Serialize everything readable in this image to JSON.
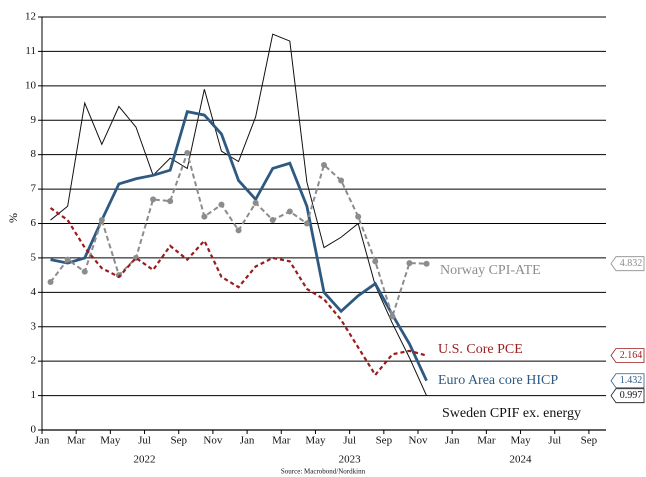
{
  "chart_data": {
    "type": "line",
    "y_label": "%",
    "source": "Source: Macrobond/Nordkinn",
    "x": [
      "2022-01",
      "2022-02",
      "2022-03",
      "2022-04",
      "2022-05",
      "2022-06",
      "2022-07",
      "2022-08",
      "2022-09",
      "2022-10",
      "2022-11",
      "2022-12",
      "2023-01",
      "2023-02",
      "2023-03",
      "2023-04",
      "2023-05",
      "2023-06",
      "2023-07",
      "2023-08",
      "2023-09",
      "2023-10",
      "2023-11"
    ],
    "xlim": [
      "2022-01",
      "2024-10"
    ],
    "xticks": [
      {
        "value": "2022-01",
        "label": "Jan"
      },
      {
        "value": "2022-03",
        "label": "Mar"
      },
      {
        "value": "2022-05",
        "label": "May"
      },
      {
        "value": "2022-07",
        "label": "Jul"
      },
      {
        "value": "2022-09",
        "label": "Sep"
      },
      {
        "value": "2022-11",
        "label": "Nov"
      },
      {
        "value": "2023-01",
        "label": "Jan"
      },
      {
        "value": "2023-03",
        "label": "Mar"
      },
      {
        "value": "2023-05",
        "label": "May"
      },
      {
        "value": "2023-07",
        "label": "Jul"
      },
      {
        "value": "2023-09",
        "label": "Sep"
      },
      {
        "value": "2023-11",
        "label": "Nov"
      },
      {
        "value": "2024-01",
        "label": "Jan"
      },
      {
        "value": "2024-03",
        "label": "Mar"
      },
      {
        "value": "2024-05",
        "label": "May"
      },
      {
        "value": "2024-07",
        "label": "Jul"
      },
      {
        "value": "2024-09",
        "label": "Sep"
      }
    ],
    "year_labels": [
      {
        "value": "2022-07",
        "label": "2022"
      },
      {
        "value": "2023-07",
        "label": "2023"
      },
      {
        "value": "2024-05",
        "label": "2024"
      }
    ],
    "ylim": [
      0,
      12
    ],
    "yticks": [
      0,
      1,
      2,
      3,
      4,
      5,
      6,
      7,
      8,
      9,
      10,
      11,
      12
    ],
    "grid": true,
    "series": [
      {
        "name": "Sweden CPIF ex. energy",
        "color": "#111111",
        "style": "solid",
        "values": [
          6.1,
          6.5,
          9.5,
          8.3,
          9.4,
          8.8,
          7.4,
          7.9,
          7.6,
          9.9,
          8.1,
          7.8,
          9.1,
          11.5,
          11.3,
          7.2,
          5.3,
          5.6,
          6.0,
          4.2,
          3.1,
          2.1,
          0.997
        ]
      },
      {
        "name": "Euro Area core HICP",
        "color": "#2e5a82",
        "style": "solid-thick",
        "values": [
          4.95,
          4.85,
          5.0,
          6.1,
          7.15,
          7.3,
          7.4,
          7.55,
          9.25,
          9.15,
          8.6,
          7.25,
          6.7,
          7.6,
          7.75,
          6.5,
          4.0,
          3.45,
          3.9,
          4.25,
          3.35,
          2.5,
          1.432
        ]
      },
      {
        "name": "Norway CPI-ATE",
        "color": "#8c8c8c",
        "style": "dashed-dots",
        "values": [
          4.3,
          4.95,
          4.6,
          6.1,
          4.5,
          5.0,
          6.7,
          6.65,
          8.05,
          6.2,
          6.55,
          5.8,
          6.6,
          6.1,
          6.35,
          6.0,
          7.7,
          7.25,
          6.2,
          4.9,
          3.3,
          4.85,
          4.832
        ]
      },
      {
        "name": "U.S. Core PCE",
        "color": "#9b1c1c",
        "style": "dashed",
        "values": [
          6.45,
          6.1,
          5.3,
          4.7,
          4.45,
          5.0,
          4.65,
          5.35,
          4.95,
          5.5,
          4.45,
          4.15,
          4.75,
          5.0,
          4.9,
          4.1,
          3.8,
          3.2,
          2.4,
          1.6,
          2.2,
          2.3,
          2.164
        ]
      }
    ]
  }
}
